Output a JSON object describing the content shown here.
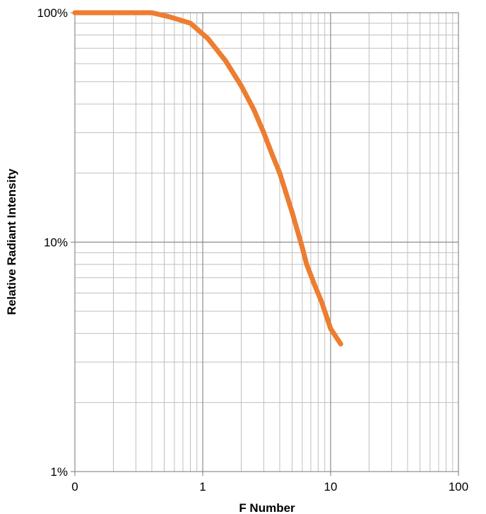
{
  "chart_data": {
    "type": "line",
    "title": "",
    "xlabel": "F Number",
    "ylabel": "Relative Radiant Intensity",
    "x_scale": "log",
    "y_scale": "log",
    "xlim": [
      0.1,
      100
    ],
    "ylim": [
      0.01,
      1
    ],
    "x_tick_labels": [
      "0",
      "1",
      "10",
      "100"
    ],
    "y_tick_labels": [
      "1%",
      "10%",
      "100%"
    ],
    "grid": "major and minor",
    "legend": "none",
    "series": [
      {
        "color": "#ED7D31",
        "x": [
          0.1,
          0.4,
          0.55,
          0.8,
          1.1,
          1.5,
          2.0,
          2.5,
          3.0,
          3.5,
          4.0,
          5.0,
          6.0,
          6.5,
          7.5,
          8.5,
          10.0,
          12.0
        ],
        "y": [
          1.0,
          1.0,
          0.96,
          0.9,
          0.77,
          0.62,
          0.48,
          0.38,
          0.3,
          0.24,
          0.2,
          0.135,
          0.095,
          0.08,
          0.065,
          0.055,
          0.042,
          0.036
        ]
      }
    ]
  }
}
